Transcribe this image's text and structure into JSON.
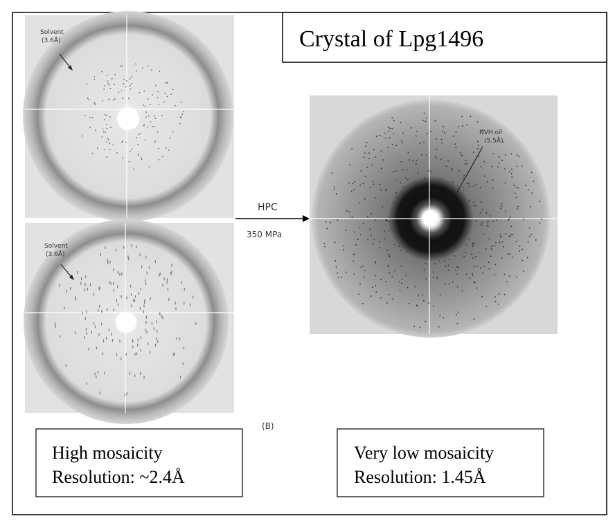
{
  "title": "Crystal of Lpg1496",
  "panels": [
    {
      "annotation": [
        "Solvent",
        "(3.6Å)"
      ]
    },
    {
      "annotation": [
        "Solvent",
        "(3.6Å)"
      ]
    },
    {
      "annotation": [
        "NVH oil",
        "(5.5Å)"
      ]
    }
  ],
  "arrow": {
    "top": "HPC",
    "bottom": "350 MPa"
  },
  "figure_label": "(B)",
  "boxes": [
    {
      "lines": [
        "High mosaicity",
        "Resolution: ~2.4Å"
      ]
    },
    {
      "lines": [
        "Very low mosaicity",
        "Resolution: 1.45Å"
      ]
    }
  ]
}
